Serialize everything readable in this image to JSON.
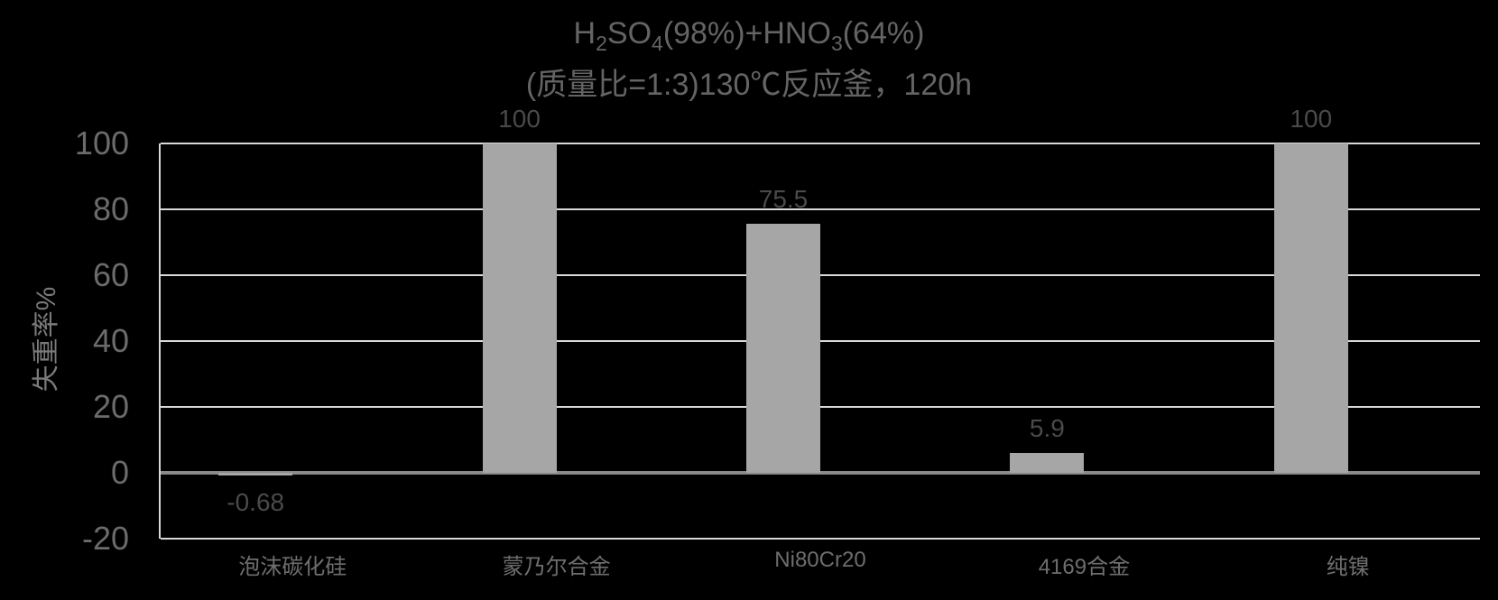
{
  "colors": {
    "background": "#000000",
    "bar": "#a6a6a6",
    "gridline": "#d9d9d9",
    "zero_axis_line": "#8a8a8a",
    "axis_line": "#d9d9d9",
    "title_text": "#646464",
    "tick_text": "#6b6b6b",
    "category_text": "#6e6e6e",
    "data_label_text": "#4a4a4a",
    "y_label_text": "#7a7a7a"
  },
  "title": {
    "line1_parts": [
      {
        "t": "H"
      },
      {
        "t": "2",
        "sub": true
      },
      {
        "t": "SO"
      },
      {
        "t": "4",
        "sub": true
      },
      {
        "t": "(98%)+HNO"
      },
      {
        "t": "3",
        "sub": true
      },
      {
        "t": "(64%)"
      }
    ],
    "line2": "(质量比=1:3)130℃反应釜，120h"
  },
  "y_axis": {
    "label": "失重率%",
    "ticks": [
      100,
      80,
      60,
      40,
      20,
      0,
      -20
    ]
  },
  "chart_data": {
    "type": "bar",
    "title": "H2SO4(98%)+HNO3(64%) (质量比=1:3)130℃反应釜，120h",
    "categories": [
      "泡沫碳化硅",
      "蒙乃尔合金",
      "Ni80Cr20",
      "4169合金",
      "纯镍"
    ],
    "values": [
      -0.68,
      100,
      75.5,
      5.9,
      100
    ],
    "data_labels": [
      "-0.68",
      "100",
      "75.5",
      "5.9",
      "100"
    ],
    "xlabel": "",
    "ylabel": "失重率%",
    "ylim": [
      -20,
      100
    ],
    "ytick_step": 20,
    "grid": true,
    "legend": false,
    "bar_color": "#a6a6a6",
    "background": "#000000"
  }
}
